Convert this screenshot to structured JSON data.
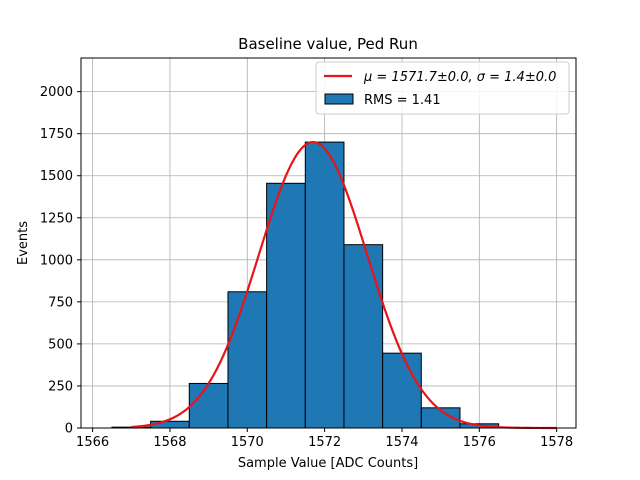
{
  "chart_data": {
    "type": "bar",
    "title": "Baseline value, Ped Run",
    "xlabel": "Sample Value [ADC Counts]",
    "ylabel": "Events",
    "xlim": [
      1565.7,
      1578.5
    ],
    "ylim": [
      0,
      2200
    ],
    "x_ticks": [
      1566,
      1568,
      1570,
      1572,
      1574,
      1576,
      1578
    ],
    "y_ticks": [
      0,
      250,
      500,
      750,
      1000,
      1250,
      1500,
      1750,
      2000
    ],
    "grid": true,
    "legend_position": "top-right",
    "bar_color": "#1f77b4",
    "fit_color": "#e8141a",
    "histogram": {
      "bin_edges": [
        1566.5,
        1567.5,
        1568.5,
        1569.5,
        1570.5,
        1571.5,
        1572.5,
        1573.5,
        1574.5,
        1575.5,
        1576.5
      ],
      "counts": [
        5,
        40,
        265,
        810,
        1455,
        1700,
        1090,
        445,
        120,
        25
      ],
      "name": "RMS = 1.41"
    },
    "fit": {
      "mu": 1571.7,
      "sigma": 1.4,
      "amplitude": 1700,
      "x_range": [
        1567,
        1578
      ],
      "name_prefix": "μ = 1571.7±0.0, ",
      "name_suffix": "σ = 1.4±0.0"
    }
  }
}
